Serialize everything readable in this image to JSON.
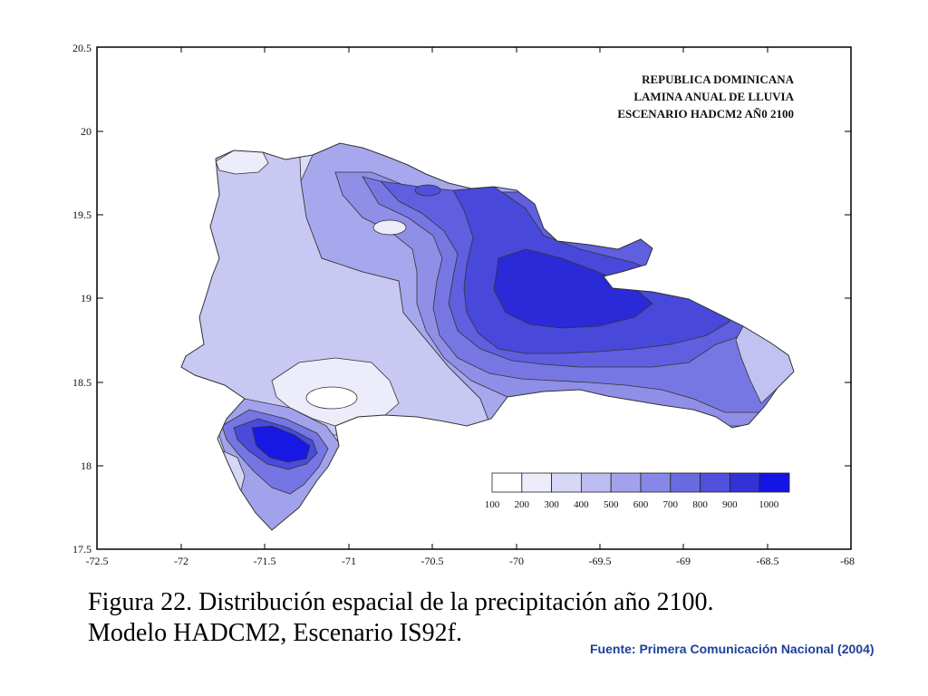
{
  "map": {
    "title_lines": [
      "REPUBLICA DOMINICANA",
      "LAMINA ANUAL DE LLUVIA",
      "ESCENARIO HADCM2 AÑ0 2100"
    ],
    "x_ticks": [
      "-72.5",
      "-72",
      "-71.5",
      "-71",
      "-70.5",
      "-70",
      "-69.5",
      "-69",
      "-68.5",
      "-68"
    ],
    "y_ticks": [
      "20.5",
      "20",
      "19.5",
      "19",
      "18.5",
      "18",
      "17.5"
    ],
    "legend": {
      "values": [
        "100",
        "200",
        "300",
        "400",
        "500",
        "600",
        "700",
        "800",
        "900",
        "1000"
      ],
      "colors": [
        "#ffffff",
        "#ececfb",
        "#d6d6f6",
        "#bcbcf1",
        "#a2a2ec",
        "#8787e6",
        "#6b6be1",
        "#5050dc",
        "#3232d8",
        "#1414e6"
      ]
    }
  },
  "caption": {
    "line1": "Figura 22. Distribución espacial de la precipitación año 2100.",
    "line2": "Modelo HADCM2, Escenario IS92f."
  },
  "source": "Fuente: Primera Comunicación Nacional (2004)"
}
